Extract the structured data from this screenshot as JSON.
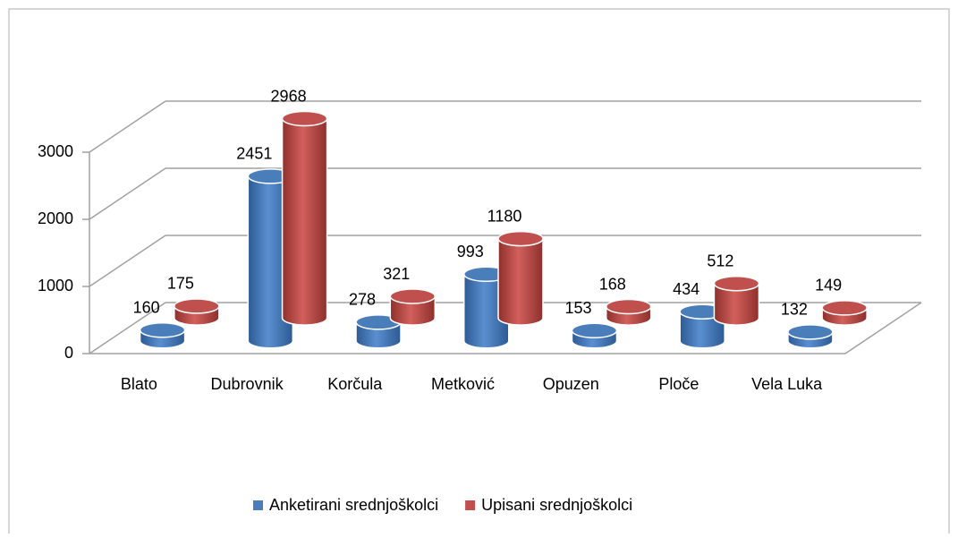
{
  "chart_data": {
    "type": "bar3d",
    "categories": [
      "Blato",
      "Dubrovnik",
      "Korčula",
      "Metković",
      "Opuzen",
      "Ploče",
      "Vela Luka"
    ],
    "series": [
      {
        "name": "Anketirani srednjoškolci",
        "color": "#4a7ebb",
        "values": [
          160,
          2451,
          278,
          993,
          153,
          434,
          132
        ]
      },
      {
        "name": "Upisani srednjoškolci",
        "color": "#c0504d",
        "values": [
          175,
          2968,
          321,
          1180,
          168,
          512,
          149
        ]
      }
    ],
    "ylim": [
      0,
      3000
    ],
    "yticks": [
      0,
      1000,
      2000,
      3000
    ],
    "grid": true,
    "legend": "bottom"
  }
}
